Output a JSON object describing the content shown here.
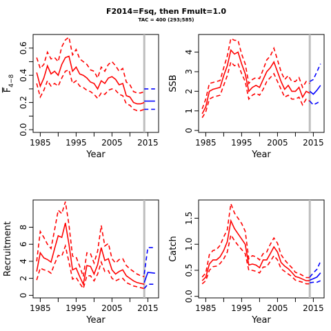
{
  "title": "F2014=Fsq, then Fmult=1.0",
  "subtitle": "TAC = 400 (293;585)",
  "colors": {
    "historic": "#ff0000",
    "projection": "#0000ff",
    "marker": "#bebebe",
    "axis": "#000000"
  },
  "chart_data": [
    {
      "id": "fbar",
      "type": "line",
      "ylabel_main": "F",
      "ylabel_sub": "4−8",
      "ylabel_bar": true,
      "xlabel": "Year",
      "xlim": [
        1983,
        2018
      ],
      "ylim": [
        -0.02,
        0.7
      ],
      "yticks": [
        0,
        0.1,
        0.2,
        0.3,
        0.4,
        0.5,
        0.6
      ],
      "yticks_labeled": [
        0,
        0.2,
        0.4,
        0.6
      ],
      "ytick_labels": [
        "0.0",
        "0.2",
        "0.4",
        "0.6"
      ],
      "xticks": [
        1985,
        1995,
        2005,
        2015
      ],
      "xtick_labels": [
        "1985",
        "1995",
        "2005",
        "2015"
      ],
      "xticks_minor": [
        1990,
        2000,
        2010
      ],
      "marker_year": 2014,
      "historic": {
        "years": [
          1984,
          1985,
          1986,
          1987,
          1988,
          1989,
          1990,
          1991,
          1992,
          1993,
          1994,
          1995,
          1996,
          1997,
          1998,
          1999,
          2000,
          2001,
          2002,
          2003,
          2004,
          2005,
          2006,
          2007,
          2008,
          2009,
          2010,
          2011,
          2012,
          2013,
          2014
        ],
        "estimate": [
          0.42,
          0.32,
          0.38,
          0.47,
          0.41,
          0.43,
          0.4,
          0.48,
          0.53,
          0.54,
          0.43,
          0.46,
          0.41,
          0.4,
          0.38,
          0.35,
          0.34,
          0.3,
          0.36,
          0.34,
          0.38,
          0.39,
          0.37,
          0.33,
          0.34,
          0.25,
          0.24,
          0.2,
          0.19,
          0.19,
          0.2
        ],
        "upper": [
          0.53,
          0.45,
          0.48,
          0.57,
          0.52,
          0.53,
          0.5,
          0.61,
          0.66,
          0.68,
          0.55,
          0.59,
          0.52,
          0.5,
          0.48,
          0.44,
          0.43,
          0.38,
          0.46,
          0.43,
          0.48,
          0.5,
          0.47,
          0.43,
          0.45,
          0.35,
          0.33,
          0.28,
          0.27,
          0.27,
          0.28
        ],
        "lower": [
          0.34,
          0.24,
          0.29,
          0.36,
          0.32,
          0.34,
          0.32,
          0.38,
          0.43,
          0.44,
          0.34,
          0.36,
          0.32,
          0.31,
          0.29,
          0.28,
          0.26,
          0.23,
          0.27,
          0.26,
          0.29,
          0.3,
          0.29,
          0.26,
          0.25,
          0.19,
          0.18,
          0.15,
          0.14,
          0.14,
          0.15
        ]
      },
      "projection": {
        "years": [
          2014,
          2015,
          2016,
          2017
        ],
        "estimate": [
          0.21,
          0.21,
          0.21,
          0.21
        ],
        "upper": [
          0.3,
          0.3,
          0.3,
          0.3
        ],
        "lower": [
          0.15,
          0.15,
          0.15,
          0.15
        ]
      }
    },
    {
      "id": "ssb",
      "type": "line",
      "ylabel_main": "SSB",
      "xlabel": "Year",
      "xlim": [
        1983,
        2018
      ],
      "ylim": [
        -0.1,
        4.9
      ],
      "yticks": [
        0,
        1,
        2,
        3,
        4
      ],
      "yticks_labeled": [
        0,
        1,
        2,
        3,
        4
      ],
      "ytick_labels": [
        "0",
        "1",
        "2",
        "3",
        "4"
      ],
      "xticks": [
        1985,
        1995,
        2005,
        2015
      ],
      "xtick_labels": [
        "1985",
        "1995",
        "2005",
        "2015"
      ],
      "xticks_minor": [
        1990,
        2000,
        2010
      ],
      "marker_year": 2014,
      "historic": {
        "years": [
          1984,
          1985,
          1986,
          1987,
          1988,
          1989,
          1990,
          1991,
          1992,
          1993,
          1994,
          1995,
          1996,
          1997,
          1998,
          1999,
          2000,
          2001,
          2002,
          2003,
          2004,
          2005,
          2006,
          2007,
          2008,
          2009,
          2010,
          2011,
          2012,
          2013,
          2014
        ],
        "estimate": [
          0.85,
          1.2,
          2.0,
          2.1,
          2.15,
          2.2,
          2.8,
          3.3,
          4.1,
          3.9,
          4.0,
          3.4,
          2.9,
          2.0,
          2.2,
          2.3,
          2.2,
          2.6,
          3.0,
          3.2,
          3.5,
          3.0,
          2.5,
          2.1,
          2.3,
          2.0,
          2.0,
          2.2,
          1.7,
          2.0,
          1.9
        ],
        "upper": [
          1.1,
          1.6,
          2.4,
          2.45,
          2.5,
          2.55,
          3.2,
          3.8,
          4.7,
          4.6,
          4.6,
          3.9,
          3.4,
          2.4,
          2.6,
          2.7,
          2.65,
          3.1,
          3.6,
          3.8,
          4.2,
          3.6,
          3.0,
          2.6,
          2.8,
          2.5,
          2.5,
          2.7,
          2.2,
          2.5,
          2.4
        ],
        "lower": [
          0.65,
          0.95,
          1.6,
          1.7,
          1.75,
          1.8,
          2.3,
          2.8,
          3.5,
          3.3,
          3.4,
          2.9,
          2.5,
          1.6,
          1.8,
          1.9,
          1.8,
          2.1,
          2.5,
          2.7,
          2.9,
          2.5,
          2.1,
          1.7,
          1.8,
          1.6,
          1.6,
          1.7,
          1.3,
          1.6,
          1.5
        ]
      },
      "projection": {
        "years": [
          2014,
          2015,
          2016,
          2017
        ],
        "estimate": [
          2.0,
          1.85,
          2.05,
          2.3
        ],
        "upper": [
          2.5,
          2.6,
          3.0,
          3.4
        ],
        "lower": [
          1.5,
          1.3,
          1.4,
          1.5
        ]
      }
    },
    {
      "id": "recruitment",
      "type": "line",
      "ylabel_main": "Recruitment",
      "xlabel": "Year",
      "xlim": [
        1983,
        2018
      ],
      "ylim": [
        -0.3,
        11.2
      ],
      "yticks": [
        0,
        2,
        4,
        6,
        8
      ],
      "yticks_labeled": [
        0,
        2,
        4,
        6,
        8
      ],
      "ytick_labels": [
        "0",
        "2",
        "4",
        "6",
        "8"
      ],
      "xticks": [
        1985,
        1995,
        2005,
        2015
      ],
      "xtick_labels": [
        "1985",
        "1995",
        "2005",
        "2015"
      ],
      "xticks_minor": [
        1990,
        2000,
        2010
      ],
      "marker_year": 2014,
      "historic": {
        "years": [
          1984,
          1985,
          1986,
          1987,
          1988,
          1989,
          1990,
          1991,
          1992,
          1993,
          1994,
          1995,
          1996,
          1997,
          1998,
          1999,
          2000,
          2001,
          2002,
          2003,
          2004,
          2005,
          2006,
          2007,
          2008,
          2009,
          2010,
          2011,
          2012,
          2013,
          2014
        ],
        "estimate": [
          2.8,
          5.0,
          4.4,
          4.2,
          3.9,
          5.5,
          7.0,
          6.8,
          8.5,
          6.0,
          3.0,
          3.2,
          2.2,
          1.3,
          3.5,
          3.4,
          2.5,
          3.6,
          5.6,
          4.1,
          4.3,
          3.0,
          2.5,
          2.8,
          3.0,
          2.3,
          2.0,
          1.7,
          1.5,
          1.4,
          1.3
        ],
        "upper": [
          4.0,
          7.5,
          6.8,
          6.0,
          5.5,
          7.7,
          10.0,
          9.6,
          11.0,
          8.3,
          4.6,
          4.5,
          3.4,
          2.2,
          5.0,
          4.9,
          3.8,
          5.2,
          8.2,
          5.8,
          6.1,
          4.3,
          3.8,
          4.2,
          4.3,
          3.5,
          3.1,
          2.8,
          2.5,
          2.3,
          2.2
        ],
        "lower": [
          1.8,
          3.2,
          3.0,
          2.9,
          2.6,
          3.7,
          4.7,
          4.6,
          5.8,
          3.9,
          1.9,
          2.1,
          1.4,
          0.8,
          2.3,
          2.3,
          1.7,
          2.5,
          3.9,
          2.8,
          2.9,
          2.0,
          1.7,
          1.9,
          2.0,
          1.5,
          1.3,
          1.1,
          1.0,
          0.9,
          0.8
        ]
      },
      "projection": {
        "years": [
          2014,
          2015,
          2016,
          2017
        ],
        "estimate": [
          1.5,
          2.7,
          2.65,
          2.6
        ],
        "upper": [
          2.5,
          5.6,
          5.6,
          5.6
        ],
        "lower": [
          0.8,
          1.3,
          1.3,
          1.3
        ]
      }
    },
    {
      "id": "catch",
      "type": "line",
      "ylabel_main": "Catch",
      "xlabel": "Year",
      "xlim": [
        1983,
        2018
      ],
      "ylim": [
        -0.03,
        1.85
      ],
      "yticks": [
        0,
        0.5,
        1.0,
        1.5
      ],
      "yticks_labeled": [
        0,
        0.5,
        1.0,
        1.5
      ],
      "ytick_labels": [
        "0.0",
        "0.5",
        "1.0",
        "1.5"
      ],
      "xticks": [
        1985,
        1995,
        2005,
        2015
      ],
      "xtick_labels": [
        "1985",
        "1995",
        "2005",
        "2015"
      ],
      "xticks_minor": [
        1990,
        2000,
        2010
      ],
      "marker_year": 2014,
      "historic": {
        "years": [
          1984,
          1985,
          1986,
          1987,
          1988,
          1989,
          1990,
          1991,
          1992,
          1993,
          1994,
          1995,
          1996,
          1997,
          1998,
          1999,
          2000,
          2001,
          2002,
          2003,
          2004,
          2005,
          2006,
          2007,
          2008,
          2009,
          2010,
          2011,
          2012,
          2013,
          2014
        ],
        "estimate": [
          0.3,
          0.37,
          0.62,
          0.7,
          0.7,
          0.76,
          0.88,
          1.05,
          1.45,
          1.3,
          1.2,
          1.1,
          1.0,
          0.6,
          0.62,
          0.6,
          0.55,
          0.7,
          0.7,
          0.82,
          0.95,
          0.85,
          0.65,
          0.58,
          0.53,
          0.46,
          0.38,
          0.36,
          0.33,
          0.3,
          0.3
        ],
        "upper": [
          0.37,
          0.45,
          0.8,
          0.88,
          0.9,
          0.98,
          1.14,
          1.28,
          1.78,
          1.6,
          1.5,
          1.4,
          1.25,
          0.72,
          0.78,
          0.76,
          0.7,
          0.82,
          0.85,
          1.0,
          1.12,
          1.02,
          0.8,
          0.7,
          0.62,
          0.55,
          0.46,
          0.44,
          0.4,
          0.36,
          0.36
        ],
        "lower": [
          0.24,
          0.3,
          0.5,
          0.57,
          0.58,
          0.63,
          0.72,
          0.85,
          1.18,
          1.07,
          0.98,
          0.9,
          0.82,
          0.5,
          0.5,
          0.48,
          0.45,
          0.56,
          0.57,
          0.67,
          0.78,
          0.7,
          0.53,
          0.48,
          0.43,
          0.38,
          0.31,
          0.29,
          0.27,
          0.24,
          0.24
        ]
      },
      "projection": {
        "years": [
          2014,
          2015,
          2016,
          2017
        ],
        "estimate": [
          0.31,
          0.34,
          0.37,
          0.45
        ],
        "upper": [
          0.37,
          0.45,
          0.52,
          0.67
        ],
        "lower": [
          0.26,
          0.27,
          0.27,
          0.3
        ]
      }
    }
  ]
}
